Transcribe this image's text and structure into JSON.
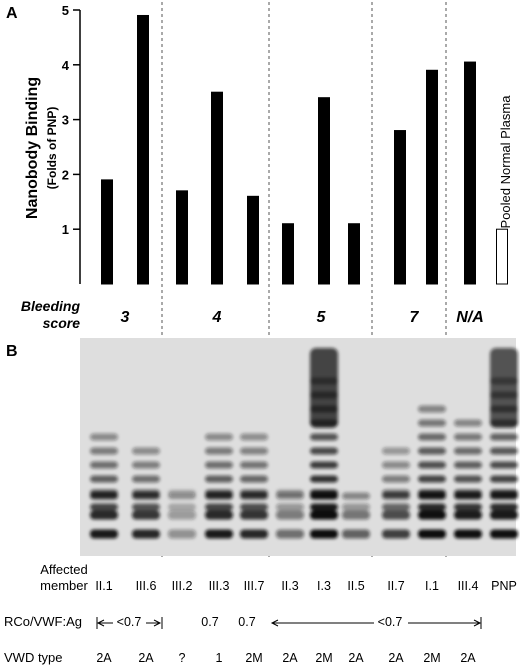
{
  "panels": {
    "a": "A",
    "b": "B"
  },
  "chart_data": {
    "type": "bar",
    "ylabel": "Nanobody Binding",
    "ylabel_sub": "(Folds of PNP)",
    "ylim": [
      0,
      5
    ],
    "yticks": [
      1,
      2,
      3,
      4,
      5
    ],
    "grid": false,
    "bars": [
      {
        "group": 0,
        "value": 1.9,
        "fill": "black"
      },
      {
        "group": 0,
        "value": 4.9,
        "fill": "black"
      },
      {
        "group": 1,
        "value": 1.7,
        "fill": "black"
      },
      {
        "group": 1,
        "value": 3.5,
        "fill": "black"
      },
      {
        "group": 1,
        "value": 1.6,
        "fill": "black"
      },
      {
        "group": 2,
        "value": 1.1,
        "fill": "black"
      },
      {
        "group": 2,
        "value": 3.4,
        "fill": "black"
      },
      {
        "group": 2,
        "value": 1.1,
        "fill": "black"
      },
      {
        "group": 3,
        "value": 2.8,
        "fill": "black"
      },
      {
        "group": 3,
        "value": 3.9,
        "fill": "black"
      },
      {
        "group": 4,
        "value": 4.05,
        "fill": "black"
      },
      {
        "group": 4,
        "value": 1.0,
        "fill": "white"
      }
    ],
    "pnp_bar_label": "Pooled Normal Plasma",
    "bleeding_score_title": [
      "Bleeding",
      "score"
    ],
    "bleeding_scores": [
      "3",
      "4",
      "5",
      "7",
      "N/A"
    ]
  },
  "gel": {
    "affected_member_title": [
      "Affected",
      "member"
    ],
    "lanes": [
      "II.1",
      "III.6",
      "III.2",
      "III.3",
      "III.7",
      "II.3",
      "I.3",
      "II.5",
      "II.7",
      "I.1",
      "III.4",
      "PNP"
    ],
    "rco_title": "RCo/VWF:Ag",
    "rco_values": [
      "<0.7",
      "0.7",
      "0.7",
      "<0.7"
    ],
    "vwd_title": "VWD type",
    "vwd_types": [
      "2A",
      "2A",
      "?",
      "1",
      "2M",
      "2A",
      "2M",
      "2A",
      "2A",
      "2M",
      "2A"
    ],
    "lane_intensity": [
      0.85,
      0.8,
      0.35,
      0.85,
      0.8,
      0.5,
      1.0,
      0.55,
      0.7,
      0.95,
      0.9,
      0.9
    ],
    "lane_top_band": [
      9,
      8,
      5,
      9,
      9,
      5,
      13,
      4,
      8,
      11,
      10,
      13
    ]
  }
}
